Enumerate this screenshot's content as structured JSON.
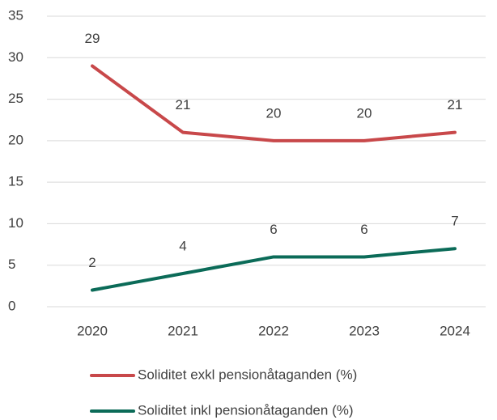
{
  "chart_data": {
    "type": "line",
    "categories": [
      "2020",
      "2021",
      "2022",
      "2023",
      "2024"
    ],
    "series": [
      {
        "name": "Soliditet exkl pensionåtaganden (%)",
        "color": "#c8484a",
        "values": [
          29,
          21,
          20,
          20,
          21
        ]
      },
      {
        "name": "Soliditet inkl pensionåtaganden (%)",
        "color": "#0b6b58",
        "values": [
          2,
          4,
          6,
          6,
          7
        ]
      }
    ],
    "ylim": [
      0,
      35
    ],
    "yticks": [
      0,
      5,
      10,
      15,
      20,
      25,
      30,
      35
    ],
    "grid": true,
    "legend": "bottom"
  }
}
